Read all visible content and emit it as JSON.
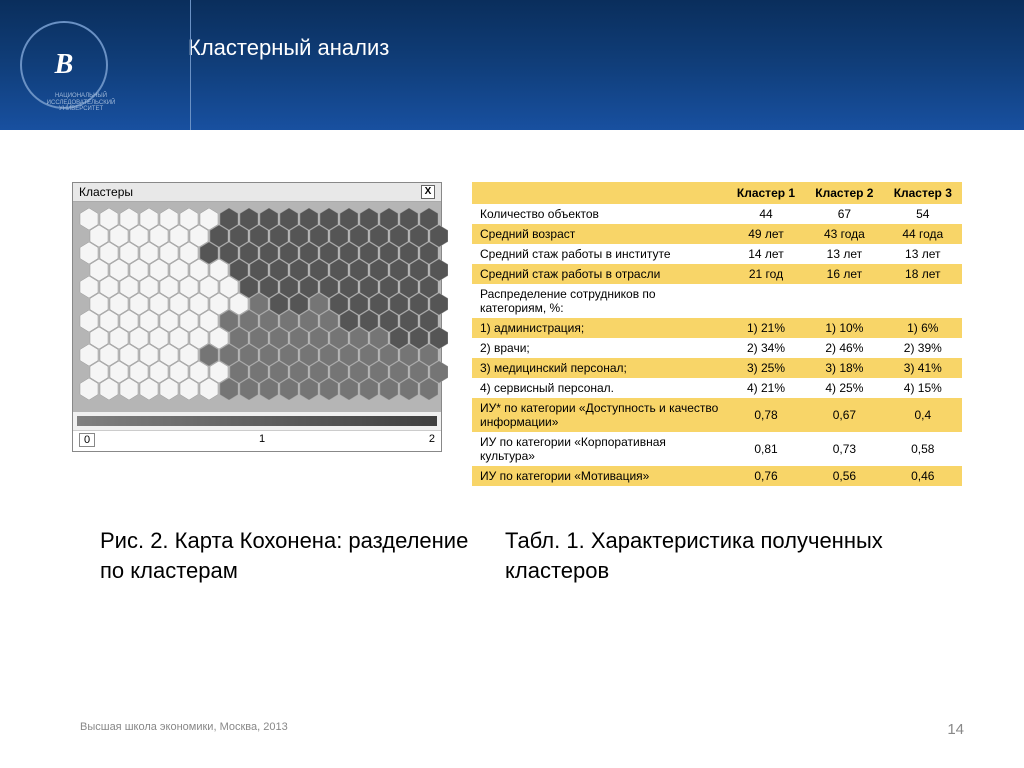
{
  "header": {
    "title": "Кластерный анализ",
    "logo_text": "В",
    "logo_subtitle": "НАЦИОНАЛЬНЫЙ ИССЛЕДОВАТЕЛЬСКИЙ УНИВЕРСИТЕТ",
    "bg_gradient": [
      "#0a2e5c",
      "#103e7a",
      "#1850a0"
    ]
  },
  "kohonen": {
    "window_title": "Кластеры",
    "close": "X",
    "axis": [
      "0",
      "1",
      "2"
    ],
    "caption": "Рис. 2. Карта Кохонена: разделение по кластерам",
    "hex_colors": {
      "light": "#f5f5f5",
      "medium": "#757575",
      "dark": "#555555",
      "bg": "#b5b5b5"
    },
    "grid": [
      [
        0,
        0,
        0,
        0,
        0,
        0,
        0,
        2,
        2,
        2,
        2,
        2,
        2,
        2,
        2,
        2,
        2,
        2
      ],
      [
        0,
        0,
        0,
        0,
        0,
        0,
        2,
        2,
        2,
        2,
        2,
        2,
        2,
        2,
        2,
        2,
        2,
        2
      ],
      [
        0,
        0,
        0,
        0,
        0,
        0,
        2,
        2,
        2,
        2,
        2,
        2,
        2,
        2,
        2,
        2,
        2,
        2
      ],
      [
        0,
        0,
        0,
        0,
        0,
        0,
        0,
        2,
        2,
        2,
        2,
        2,
        2,
        2,
        2,
        2,
        2,
        2
      ],
      [
        0,
        0,
        0,
        0,
        0,
        0,
        0,
        0,
        2,
        2,
        2,
        2,
        2,
        2,
        2,
        2,
        2,
        2
      ],
      [
        0,
        0,
        0,
        0,
        0,
        0,
        0,
        0,
        1,
        2,
        2,
        1,
        2,
        2,
        2,
        2,
        2,
        2
      ],
      [
        0,
        0,
        0,
        0,
        0,
        0,
        0,
        1,
        1,
        1,
        1,
        1,
        1,
        2,
        2,
        2,
        2,
        2
      ],
      [
        0,
        0,
        0,
        0,
        0,
        0,
        0,
        1,
        1,
        1,
        1,
        1,
        1,
        1,
        1,
        2,
        2,
        2
      ],
      [
        0,
        0,
        0,
        0,
        0,
        0,
        1,
        1,
        1,
        1,
        1,
        1,
        1,
        1,
        1,
        1,
        1,
        1
      ],
      [
        0,
        0,
        0,
        0,
        0,
        0,
        0,
        1,
        1,
        1,
        1,
        1,
        1,
        1,
        1,
        1,
        1,
        1
      ],
      [
        0,
        0,
        0,
        0,
        0,
        0,
        0,
        1,
        1,
        1,
        1,
        1,
        1,
        1,
        1,
        1,
        1,
        1
      ]
    ]
  },
  "table": {
    "caption": "Табл. 1. Характеристика полученных кластеров",
    "header_bg": "#f8d568",
    "row_yellow": "#f8d568",
    "row_white": "#ffffff",
    "columns": [
      "",
      "Кластер 1",
      "Кластер 2",
      "Кластер 3"
    ],
    "rows": [
      {
        "bg": "white",
        "cells": [
          "Количество объектов",
          "44",
          "67",
          "54"
        ]
      },
      {
        "bg": "yellow",
        "cells": [
          "Средний возраст",
          "49 лет",
          "43 года",
          "44 года"
        ]
      },
      {
        "bg": "white",
        "cells": [
          "Средний стаж работы в институте",
          "14 лет",
          "13 лет",
          "13 лет"
        ]
      },
      {
        "bg": "yellow",
        "cells": [
          "Средний стаж работы в отрасли",
          "21 год",
          "16 лет",
          "18 лет"
        ]
      },
      {
        "bg": "white",
        "cells": [
          "Распределение сотрудников по категориям, %:",
          "",
          "",
          ""
        ]
      },
      {
        "bg": "yellow",
        "cells": [
          "1) администрация;",
          "1) 21%",
          "1) 10%",
          "1) 6%"
        ]
      },
      {
        "bg": "white",
        "cells": [
          "2) врачи;",
          "2) 34%",
          "2) 46%",
          "2) 39%"
        ]
      },
      {
        "bg": "yellow",
        "cells": [
          "3) медицинский персонал;",
          "3) 25%",
          "3) 18%",
          "3) 41%"
        ]
      },
      {
        "bg": "white",
        "cells": [
          "4) сервисный персонал.",
          "4) 21%",
          "4) 25%",
          "4) 15%"
        ]
      },
      {
        "bg": "yellow",
        "cells": [
          "ИУ* по категории «Доступность и качество информации»",
          "0,78",
          "0,67",
          "0,4"
        ]
      },
      {
        "bg": "white",
        "cells": [
          "ИУ по категории «Корпоративная культура»",
          "0,81",
          "0,73",
          "0,58"
        ]
      },
      {
        "bg": "yellow",
        "cells": [
          "ИУ по категории «Мотивация»",
          "0,76",
          "0,56",
          "0,46"
        ]
      }
    ]
  },
  "footer": {
    "org": "Высшая школа экономики, Москва, 2013",
    "page": "14"
  }
}
